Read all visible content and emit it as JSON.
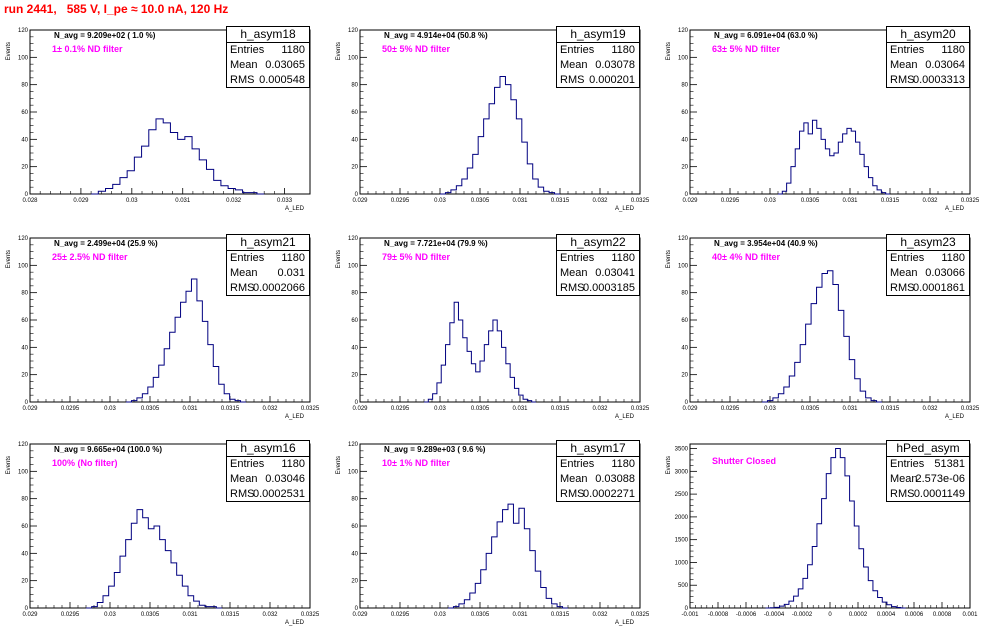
{
  "page": {
    "title": "run 2441,   585 V, I_pe ≈ 10.0 nA, 120 Hz"
  },
  "statbox_labels": {
    "entries": "Entries",
    "mean": "Mean",
    "rms": "RMS"
  },
  "chart_data": [
    {
      "type": "bar",
      "name": "h_asym18",
      "navg": "N_avg = 9.209e+02 ( 1.0 %)",
      "filter_label": "1± 0.1% ND filter",
      "entries": "1180",
      "mean": "0.03065",
      "rms": "0.000548",
      "xlabel": "A_LED",
      "ylabel": "Events",
      "xlim": [
        0.028,
        0.0335
      ],
      "ylim": [
        0,
        120
      ],
      "xticks": [
        0.028,
        0.029,
        0.03,
        0.031,
        0.032,
        0.033
      ],
      "xtick_labels": [
        "0.028",
        "0.029",
        "0.03",
        "0.031",
        "0.032",
        "0.033"
      ],
      "yticks": [
        0,
        20,
        40,
        60,
        80,
        100,
        120
      ],
      "hist_bins": 24,
      "hist": [
        0,
        2,
        4,
        7,
        12,
        17,
        27,
        35,
        47,
        55,
        52,
        45,
        40,
        42,
        33,
        25,
        18,
        10,
        6,
        4,
        3,
        1,
        1,
        0
      ],
      "hist_range": [
        0.0292,
        0.0326
      ]
    },
    {
      "type": "bar",
      "name": "h_asym19",
      "navg": "N_avg = 4.914e+04 (50.8 %)",
      "filter_label": "50± 5% ND filter",
      "entries": "1180",
      "mean": "0.03078",
      "rms": "0.000201",
      "xlabel": "A_LED",
      "ylabel": "Events",
      "xlim": [
        0.029,
        0.0325
      ],
      "ylim": [
        0,
        120
      ],
      "xticks": [
        0.029,
        0.0295,
        0.03,
        0.0305,
        0.031,
        0.0315,
        0.032,
        0.0325
      ],
      "xtick_labels": [
        "0.029",
        "0.0295",
        "0.03",
        "0.0305",
        "0.031",
        "0.0315",
        "0.032",
        "0.0325"
      ],
      "yticks": [
        0,
        20,
        40,
        60,
        80,
        100,
        120
      ],
      "hist_bins": 22,
      "hist": [
        0,
        1,
        3,
        6,
        11,
        19,
        29,
        42,
        55,
        66,
        78,
        86,
        80,
        69,
        55,
        38,
        22,
        11,
        5,
        2,
        1,
        0
      ],
      "hist_range": [
        0.03,
        0.0315
      ]
    },
    {
      "type": "bar",
      "name": "h_asym20",
      "navg": "N_avg = 6.091e+04 (63.0 %)",
      "filter_label": "63± 5% ND filter",
      "entries": "1180",
      "mean": "0.03064",
      "rms": "0.0003313",
      "xlabel": "A_LED",
      "ylabel": "Events",
      "xlim": [
        0.029,
        0.0325
      ],
      "ylim": [
        0,
        120
      ],
      "xticks": [
        0.029,
        0.0295,
        0.03,
        0.0305,
        0.031,
        0.0315,
        0.032,
        0.0325
      ],
      "xtick_labels": [
        "0.029",
        "0.0295",
        "0.03",
        "0.0305",
        "0.031",
        "0.0315",
        "0.032",
        "0.0325"
      ],
      "yticks": [
        0,
        20,
        40,
        60,
        80,
        100,
        120
      ],
      "hist_bins": 26,
      "hist": [
        0,
        2,
        8,
        20,
        33,
        46,
        52,
        44,
        54,
        48,
        40,
        33,
        28,
        30,
        38,
        44,
        48,
        46,
        38,
        29,
        20,
        12,
        6,
        3,
        1,
        0
      ],
      "hist_range": [
        0.0301,
        0.0315
      ]
    },
    {
      "type": "bar",
      "name": "h_asym21",
      "navg": "N_avg = 2.499e+04 (25.9 %)",
      "filter_label": "25± 2.5% ND filter",
      "entries": "1180",
      "mean": "0.031",
      "rms": "0.0002066",
      "xlabel": "A_LED",
      "ylabel": "Events",
      "xlim": [
        0.029,
        0.0325
      ],
      "ylim": [
        0,
        120
      ],
      "xticks": [
        0.029,
        0.0295,
        0.03,
        0.0305,
        0.031,
        0.0315,
        0.032,
        0.0325
      ],
      "xtick_labels": [
        "0.029",
        "0.0295",
        "0.03",
        "0.0305",
        "0.031",
        "0.0315",
        "0.032",
        "0.0325"
      ],
      "yticks": [
        0,
        20,
        40,
        60,
        80,
        100,
        120
      ],
      "hist_bins": 22,
      "hist": [
        0,
        1,
        3,
        6,
        11,
        18,
        27,
        39,
        51,
        62,
        73,
        81,
        90,
        74,
        59,
        42,
        26,
        13,
        6,
        2,
        1,
        0
      ],
      "hist_range": [
        0.0302,
        0.0317
      ]
    },
    {
      "type": "bar",
      "name": "h_asym22",
      "navg": "N_avg = 7.721e+04 (79.9 %)",
      "filter_label": "79± 5% ND filter",
      "entries": "1180",
      "mean": "0.03041",
      "rms": "0.0003185",
      "xlabel": "A_LED",
      "ylabel": "Events",
      "xlim": [
        0.029,
        0.0325
      ],
      "ylim": [
        0,
        120
      ],
      "xticks": [
        0.029,
        0.0295,
        0.03,
        0.0305,
        0.031,
        0.0315,
        0.032,
        0.0325
      ],
      "xtick_labels": [
        "0.029",
        "0.0295",
        "0.03",
        "0.0305",
        "0.031",
        "0.0315",
        "0.032",
        "0.0325"
      ],
      "yticks": [
        0,
        20,
        40,
        60,
        80,
        100,
        120
      ],
      "hist_bins": 26,
      "hist": [
        0,
        2,
        6,
        14,
        27,
        42,
        58,
        73,
        60,
        47,
        37,
        28,
        22,
        30,
        42,
        52,
        60,
        52,
        40,
        28,
        18,
        10,
        5,
        2,
        1,
        0
      ],
      "hist_range": [
        0.0298,
        0.0312
      ]
    },
    {
      "type": "bar",
      "name": "h_asym23",
      "navg": "N_avg = 3.954e+04 (40.9 %)",
      "filter_label": "40± 4% ND filter",
      "entries": "1180",
      "mean": "0.03066",
      "rms": "0.0001861",
      "xlabel": "A_LED",
      "ylabel": "Events",
      "xlim": [
        0.029,
        0.0325
      ],
      "ylim": [
        0,
        120
      ],
      "xticks": [
        0.029,
        0.0295,
        0.03,
        0.0305,
        0.031,
        0.0315,
        0.032,
        0.0325
      ],
      "xtick_labels": [
        "0.029",
        "0.0295",
        "0.03",
        "0.0305",
        "0.031",
        "0.0315",
        "0.032",
        "0.0325"
      ],
      "yticks": [
        0,
        20,
        40,
        60,
        80,
        100,
        120
      ],
      "hist_bins": 22,
      "hist": [
        0,
        1,
        3,
        6,
        11,
        19,
        29,
        42,
        57,
        72,
        84,
        94,
        96,
        86,
        67,
        48,
        31,
        17,
        8,
        3,
        1,
        0
      ],
      "hist_range": [
        0.0299,
        0.0314
      ]
    },
    {
      "type": "bar",
      "name": "h_asym16",
      "navg": "N_avg = 9.665e+04 (100.0 %)",
      "filter_label": "100% (No filter)",
      "entries": "1180",
      "mean": "0.03046",
      "rms": "0.0002531",
      "xlabel": "A_LED",
      "ylabel": "Events",
      "xlim": [
        0.029,
        0.0325
      ],
      "ylim": [
        0,
        120
      ],
      "xticks": [
        0.029,
        0.0295,
        0.03,
        0.0305,
        0.031,
        0.0315,
        0.032,
        0.0325
      ],
      "xtick_labels": [
        "0.029",
        "0.0295",
        "0.03",
        "0.0305",
        "0.031",
        "0.0315",
        "0.032",
        "0.0325"
      ],
      "yticks": [
        0,
        20,
        40,
        60,
        80,
        100,
        120
      ],
      "hist_bins": 24,
      "hist": [
        0,
        1,
        4,
        9,
        16,
        26,
        38,
        50,
        62,
        72,
        66,
        58,
        60,
        50,
        42,
        33,
        24,
        16,
        9,
        5,
        2,
        1,
        1,
        0
      ],
      "hist_range": [
        0.0297,
        0.0314
      ]
    },
    {
      "type": "bar",
      "name": "h_asym17",
      "navg": "N_avg = 9.289e+03 ( 9.6 %)",
      "filter_label": "10± 1% ND filter",
      "entries": "1180",
      "mean": "0.03088",
      "rms": "0.0002271",
      "xlabel": "A_LED",
      "ylabel": "Events",
      "xlim": [
        0.029,
        0.0325
      ],
      "ylim": [
        0,
        120
      ],
      "xticks": [
        0.029,
        0.0295,
        0.03,
        0.0305,
        0.031,
        0.0315,
        0.032,
        0.0325
      ],
      "xtick_labels": [
        "0.029",
        "0.0295",
        "0.03",
        "0.0305",
        "0.031",
        "0.0315",
        "0.032",
        "0.0325"
      ],
      "yticks": [
        0,
        20,
        40,
        60,
        80,
        100,
        120
      ],
      "hist_bins": 22,
      "hist": [
        0,
        1,
        3,
        6,
        11,
        18,
        28,
        40,
        52,
        63,
        72,
        76,
        62,
        73,
        58,
        42,
        27,
        15,
        7,
        3,
        1,
        0
      ],
      "hist_range": [
        0.0301,
        0.0316
      ]
    },
    {
      "type": "bar",
      "name": "hPed_asym",
      "navg": "",
      "filter_label": "Shutter Closed",
      "entries": "51381",
      "mean": "2.573e-06",
      "rms": "0.0001149",
      "xlabel": "",
      "ylabel": "Events",
      "xlim": [
        -0.001,
        0.001
      ],
      "ylim": [
        0,
        3600
      ],
      "xticks": [
        -0.001,
        -0.0008,
        -0.0006,
        -0.0004,
        -0.0002,
        0,
        0.0002,
        0.0004,
        0.0006,
        0.0008,
        0.001
      ],
      "xtick_labels": [
        "-0.001",
        "-0.0008",
        "-0.0006",
        "-0.0004",
        "-0.0002",
        "0",
        "0.0002",
        "0.0004",
        "0.0006",
        "0.0008",
        "0.001"
      ],
      "yticks": [
        0,
        500,
        1000,
        1500,
        2000,
        2500,
        3000,
        3500
      ],
      "hist_bins": 30,
      "hist": [
        0,
        5,
        15,
        40,
        80,
        150,
        260,
        420,
        650,
        950,
        1350,
        1850,
        2400,
        2950,
        3300,
        3500,
        3300,
        2900,
        2350,
        1800,
        1300,
        900,
        600,
        380,
        230,
        130,
        70,
        30,
        10,
        0
      ],
      "hist_range": [
        -0.00046,
        0.00054
      ]
    }
  ]
}
